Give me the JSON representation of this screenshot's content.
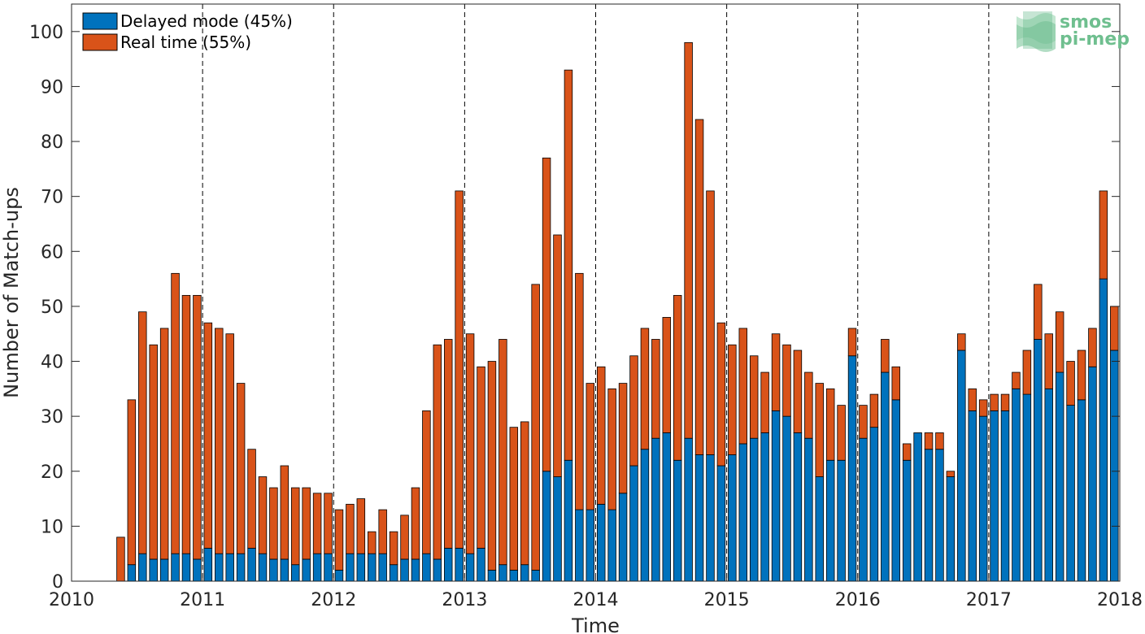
{
  "chart_data": {
    "type": "bar",
    "stacked": true,
    "xlabel": "Time",
    "ylabel": "Number of Match-ups",
    "xlim": [
      2010,
      2018
    ],
    "ylim": [
      0,
      105
    ],
    "xticks": [
      "2010",
      "2011",
      "2012",
      "2013",
      "2014",
      "2015",
      "2016",
      "2017",
      "2018"
    ],
    "yticks": [
      "0",
      "10",
      "20",
      "30",
      "40",
      "50",
      "60",
      "70",
      "80",
      "90",
      "100"
    ],
    "x_unit": "month",
    "x_start": "2010-05",
    "legend_placement": "top-left",
    "year_separators": "dashed",
    "series": [
      {
        "name": "Delayed mode (45%)",
        "color": "#0072BD",
        "values": [
          0,
          3,
          5,
          4,
          4,
          5,
          5,
          4,
          6,
          5,
          5,
          5,
          6,
          5,
          4,
          4,
          3,
          4,
          5,
          5,
          2,
          5,
          5,
          5,
          5,
          3,
          4,
          4,
          5,
          4,
          6,
          6,
          5,
          6,
          2,
          3,
          2,
          3,
          2,
          20,
          19,
          22,
          13,
          13,
          14,
          13,
          16,
          21,
          24,
          26,
          27,
          22,
          26,
          23,
          23,
          21,
          23,
          25,
          26,
          27,
          31,
          30,
          27,
          26,
          19,
          22,
          22,
          41,
          26,
          28,
          38,
          33,
          22,
          27,
          24,
          24,
          19,
          42,
          31,
          30,
          31,
          31,
          35,
          34,
          44,
          35,
          38,
          32,
          33,
          39,
          55,
          42
        ]
      },
      {
        "name": "Real time (55%)",
        "color": "#D95319",
        "values": [
          8,
          30,
          44,
          39,
          42,
          51,
          47,
          48,
          41,
          41,
          40,
          31,
          18,
          14,
          13,
          17,
          14,
          13,
          11,
          11,
          11,
          9,
          10,
          4,
          8,
          6,
          8,
          13,
          26,
          39,
          38,
          65,
          40,
          33,
          38,
          41,
          26,
          26,
          52,
          57,
          44,
          71,
          43,
          23,
          25,
          22,
          20,
          20,
          22,
          18,
          21,
          30,
          72,
          61,
          48,
          26,
          20,
          21,
          15,
          11,
          14,
          13,
          15,
          12,
          17,
          13,
          10,
          5,
          6,
          6,
          6,
          6,
          3,
          0,
          3,
          3,
          1,
          3,
          4,
          3,
          3,
          3,
          3,
          8,
          10,
          10,
          11,
          8,
          9,
          7,
          16,
          8
        ]
      }
    ]
  },
  "logo": {
    "line1": "smos",
    "line2": "pi-mep"
  },
  "colors": {
    "axis": "#262626",
    "bar_edge": "#000000",
    "logo_green": "#6fbf8f"
  }
}
